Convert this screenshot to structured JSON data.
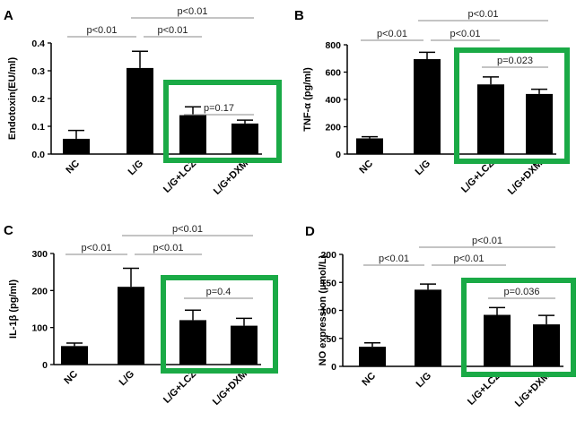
{
  "highlight_color": "#1aaa46",
  "bar_color": "#000000",
  "bracket_color": "#8a8a8a",
  "chart_data": [
    {
      "type": "bar",
      "panel": "A",
      "ylabel": "Endotoxin(EU/ml)",
      "categories": [
        "NC",
        "L/G",
        "L/G+LCZ",
        "L/G+DXM"
      ],
      "values": [
        0.055,
        0.31,
        0.14,
        0.11
      ],
      "errors": [
        0.03,
        0.06,
        0.03,
        0.012
      ],
      "ylim": [
        0,
        0.4
      ],
      "yticks": [
        "0.0",
        "0.1",
        "0.2",
        "0.3",
        "0.4"
      ],
      "comparisons": [
        {
          "from": 0,
          "to": 1,
          "label": "p<0.01",
          "level": 1
        },
        {
          "from": 1,
          "to": 2,
          "label": "p<0.01",
          "level": 1
        },
        {
          "from": 1,
          "to": 3,
          "label": "p<0.01",
          "level": 2
        },
        {
          "from": 2,
          "to": 3,
          "label": "p=0.17",
          "level": 0
        }
      ],
      "highlight": [
        2,
        3
      ]
    },
    {
      "type": "bar",
      "panel": "B",
      "ylabel": "TNF-α (pg/ml)",
      "categories": [
        "NC",
        "L/G",
        "L/G+LCZ",
        "L/G+DXM"
      ],
      "values": [
        115,
        695,
        510,
        440
      ],
      "errors": [
        12,
        50,
        55,
        35
      ],
      "ylim": [
        0,
        800
      ],
      "yticks": [
        "0",
        "200",
        "400",
        "600",
        "800"
      ],
      "comparisons": [
        {
          "from": 0,
          "to": 1,
          "label": "p<0.01",
          "level": 1
        },
        {
          "from": 1,
          "to": 2,
          "label": "p<0.01",
          "level": 1
        },
        {
          "from": 1,
          "to": 3,
          "label": "p<0.01",
          "level": 2
        },
        {
          "from": 2,
          "to": 3,
          "label": "p=0.023",
          "level": 0
        }
      ],
      "highlight": [
        2,
        3
      ]
    },
    {
      "type": "bar",
      "panel": "C",
      "ylabel": "IL-1β (pg/ml)",
      "categories": [
        "NC",
        "L/G",
        "L/G+LCZ",
        "L/G+DXM"
      ],
      "values": [
        50,
        210,
        120,
        105
      ],
      "errors": [
        8,
        50,
        27,
        20
      ],
      "ylim": [
        0,
        300
      ],
      "yticks": [
        "0",
        "100",
        "200",
        "300"
      ],
      "comparisons": [
        {
          "from": 0,
          "to": 1,
          "label": "p<0.01",
          "level": 1
        },
        {
          "from": 1,
          "to": 2,
          "label": "p<0.01",
          "level": 1
        },
        {
          "from": 1,
          "to": 3,
          "label": "p<0.01",
          "level": 2
        },
        {
          "from": 2,
          "to": 3,
          "label": "p=0.4",
          "level": 0
        }
      ],
      "highlight": [
        2,
        3
      ]
    },
    {
      "type": "bar",
      "panel": "D",
      "ylabel": "NO expression (µmol/L)",
      "categories": [
        "NC",
        "L/G",
        "L/G+LCZ",
        "L/G+DXM"
      ],
      "values": [
        35,
        137,
        92,
        75
      ],
      "errors": [
        7,
        10,
        13,
        16
      ],
      "ylim": [
        0,
        200
      ],
      "yticks": [
        "0",
        "50",
        "100",
        "150",
        "200"
      ],
      "comparisons": [
        {
          "from": 0,
          "to": 1,
          "label": "p<0.01",
          "level": 1
        },
        {
          "from": 1,
          "to": 2,
          "label": "p<0.01",
          "level": 1
        },
        {
          "from": 1,
          "to": 3,
          "label": "p<0.01",
          "level": 2
        },
        {
          "from": 2,
          "to": 3,
          "label": "p=0.036",
          "level": 0
        }
      ],
      "highlight": [
        2,
        3
      ]
    }
  ]
}
